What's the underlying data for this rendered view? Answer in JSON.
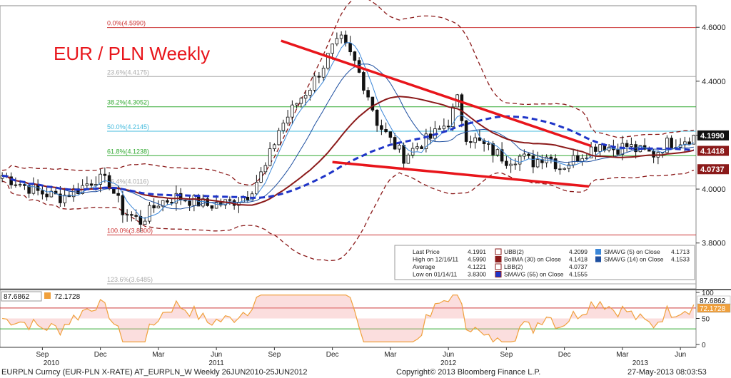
{
  "chart_data": {
    "type": "candlestick",
    "title": "EUR / PLN Weekly",
    "colors": {
      "title": "#e8151b",
      "sma55": "#1f35c8",
      "sma5": "#3a86d8",
      "sma14": "#1e4fa0",
      "bollma": "#8b1a1a",
      "bands": "#8b1a1a",
      "trendline": "#e8151b",
      "candle": "#111111",
      "rsi_line": "#f0a03c",
      "rsi_fill": "#f4a0a0"
    },
    "y_axis": {
      "min": 3.63,
      "max": 4.68,
      "ticks": [
        "4.6000",
        "4.4000",
        "4.2000",
        "4.0000",
        "3.8000"
      ],
      "tick_values": [
        4.6,
        4.4,
        4.2,
        4.0,
        3.8
      ]
    },
    "fib_levels": [
      {
        "label": "0.0%(4.5990)",
        "value": 4.599,
        "color": "#cc3333"
      },
      {
        "label": "23.6%(4.4175)",
        "value": 4.4175,
        "color": "#aaaaaa"
      },
      {
        "label": "38.2%(4.3052)",
        "value": 4.3052,
        "color": "#33aa33"
      },
      {
        "label": "50.0%(4.2145)",
        "value": 4.2145,
        "color": "#44bbdd"
      },
      {
        "label": "61.8%(4.1238)",
        "value": 4.1238,
        "color": "#33aa33"
      },
      {
        "label": "76.4%(4.0116)",
        "value": 4.0116,
        "color": "#aaaaaa"
      },
      {
        "label": "100.0%(3.8300)",
        "value": 3.83,
        "color": "#cc3333"
      },
      {
        "label": "123.6%(3.6485)",
        "value": 3.6485,
        "color": "#aaaaaa"
      }
    ],
    "price_tags": [
      {
        "text": "4.1990",
        "value": 4.199,
        "bg": "#111111",
        "fg": "#ffffff"
      },
      {
        "text": "4.1418",
        "value": 4.1418,
        "bg": "#8b1a1a",
        "fg": "#ffffff"
      },
      {
        "text": "4.0737",
        "value": 4.0737,
        "bg": "#8b1a1a",
        "fg": "#ffffff"
      }
    ],
    "trendlines": [
      {
        "from": [
          62.5,
          4.55
        ],
        "to": [
          132,
          4.16
        ]
      },
      {
        "from": [
          74,
          4.1
        ],
        "to": [
          131.5,
          4.01
        ]
      }
    ],
    "legend": {
      "col1": [
        {
          "label": "Last Price",
          "value": "4.1991"
        },
        {
          "label": "High on 12/16/11",
          "value": "4.5990"
        },
        {
          "label": "Average",
          "value": "4.1221"
        },
        {
          "label": "Low on 01/14/11",
          "value": "3.8300"
        }
      ],
      "col2": [
        {
          "label": "UBB(2)",
          "value": "4.2099"
        },
        {
          "label": "BollMA (30) on Close",
          "value": "4.1418"
        },
        {
          "label": "LBB(2)",
          "value": "4.0737"
        },
        {
          "label": "SMAVG (55) on Close",
          "value": "4.1555"
        }
      ],
      "col3": [
        {
          "label": "SMAVG (5) on Close",
          "value": "4.1713"
        },
        {
          "label": "SMAVG (14) on Close",
          "value": "4.1533"
        }
      ]
    },
    "rsi": {
      "y_ticks": [
        "100",
        "50",
        "0"
      ],
      "y_tick_values": [
        100,
        50,
        0
      ],
      "levels": [
        70,
        30
      ],
      "labels": [
        "87.6862",
        "72.1728"
      ],
      "tags": [
        {
          "text": "87.6862",
          "bg": "#ffffff",
          "fg": "#111111"
        },
        {
          "text": "72.1728",
          "bg": "#f0a03c",
          "fg": "#ffffff"
        }
      ]
    },
    "x_axis": {
      "months": [
        {
          "label": "Sep",
          "week": 9
        },
        {
          "label": "Dec",
          "week": 22
        },
        {
          "label": "Mar",
          "week": 35
        },
        {
          "label": "Jun",
          "week": 48
        },
        {
          "label": "Sep",
          "week": 61
        },
        {
          "label": "Dec",
          "week": 74
        },
        {
          "label": "Mar",
          "week": 87
        },
        {
          "label": "Jun",
          "week": 100
        },
        {
          "label": "Sep",
          "week": 113
        },
        {
          "label": "Dec",
          "week": 126
        },
        {
          "label": "Mar",
          "week": 139
        },
        {
          "label": "Jun",
          "week": 152
        }
      ],
      "years": [
        {
          "label": "2010",
          "week": 11
        },
        {
          "label": "2011",
          "week": 48
        },
        {
          "label": "2012",
          "week": 100
        },
        {
          "label": "2013",
          "week": 143
        }
      ],
      "total_weeks": 156
    },
    "anchors": [
      [
        0,
        4.05
      ],
      [
        4,
        4.02
      ],
      [
        8,
        3.99
      ],
      [
        13,
        3.97
      ],
      [
        17,
        4.0
      ],
      [
        21,
        4.04
      ],
      [
        24,
        4.02
      ],
      [
        27,
        3.92
      ],
      [
        31,
        3.88
      ],
      [
        35,
        3.95
      ],
      [
        39,
        3.97
      ],
      [
        42,
        3.96
      ],
      [
        46,
        3.94
      ],
      [
        51,
        3.95
      ],
      [
        55,
        3.98
      ],
      [
        59,
        4.08
      ],
      [
        62,
        4.22
      ],
      [
        66,
        4.32
      ],
      [
        69,
        4.38
      ],
      [
        72,
        4.46
      ],
      [
        74,
        4.52
      ],
      [
        76,
        4.55
      ],
      [
        79,
        4.47
      ],
      [
        82,
        4.35
      ],
      [
        84,
        4.25
      ],
      [
        87,
        4.18
      ],
      [
        90,
        4.12
      ],
      [
        93,
        4.16
      ],
      [
        96,
        4.19
      ],
      [
        98,
        4.22
      ],
      [
        100,
        4.25
      ],
      [
        102,
        4.33
      ],
      [
        104,
        4.2
      ],
      [
        107,
        4.17
      ],
      [
        110,
        4.14
      ],
      [
        113,
        4.11
      ],
      [
        116,
        4.12
      ],
      [
        119,
        4.1
      ],
      [
        122,
        4.13
      ],
      [
        125,
        4.08
      ],
      [
        128,
        4.11
      ],
      [
        131,
        4.14
      ],
      [
        134,
        4.17
      ],
      [
        137,
        4.15
      ],
      [
        140,
        4.16
      ],
      [
        143,
        4.14
      ],
      [
        146,
        4.13
      ],
      [
        149,
        4.17
      ],
      [
        152,
        4.18
      ],
      [
        156,
        4.2
      ]
    ]
  },
  "footer": {
    "left": "EURPLN Curncy (EUR-PLN X-RATE) AT_EURPLN_W  Weekly 26JUN2010-25JUN2012",
    "center": "Copyright© 2013 Bloomberg Finance L.P.",
    "right": "27-May-2013 08:03:53"
  }
}
